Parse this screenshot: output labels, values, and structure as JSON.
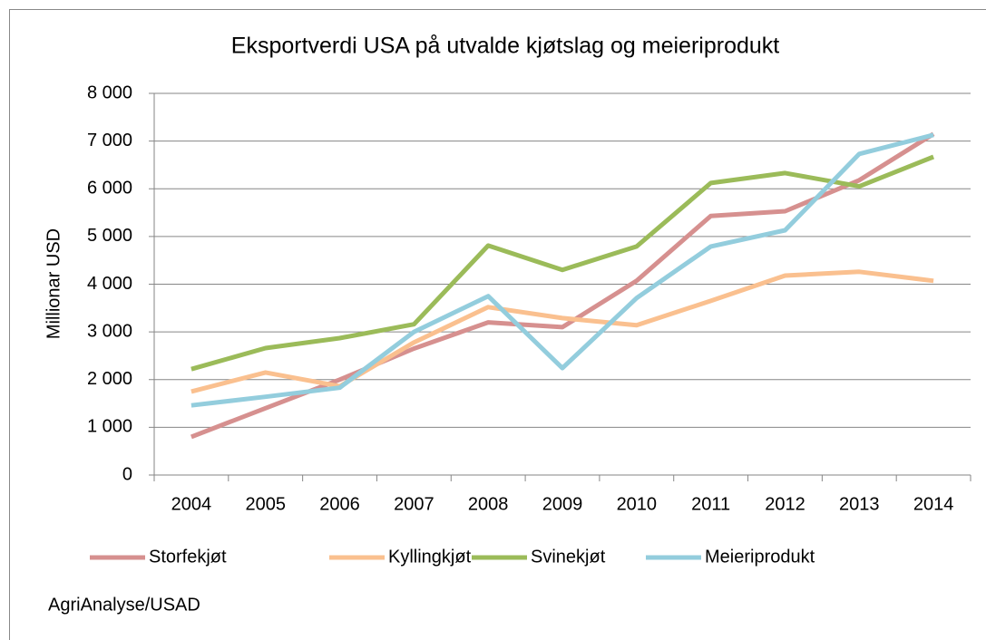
{
  "chart_data": {
    "type": "line",
    "title": "Eksportverdi USA på utvalde kjøtslag og meieriprodukt",
    "y_label": "Millionar USD",
    "source": "AgriAnalyse/USAD",
    "categories": [
      "2004",
      "2005",
      "2006",
      "2007",
      "2008",
      "2009",
      "2010",
      "2011",
      "2012",
      "2013",
      "2014"
    ],
    "series": [
      {
        "name": "Storfekjøt",
        "color": "#d6908f",
        "values": [
          800,
          1400,
          2000,
          2650,
          3200,
          3100,
          4070,
          5430,
          5530,
          6180,
          7150
        ]
      },
      {
        "name": "Kyllingkjøt",
        "color": "#fac08f",
        "values": [
          1750,
          2150,
          1860,
          2780,
          3520,
          3290,
          3140,
          3650,
          4180,
          4260,
          4070
        ]
      },
      {
        "name": "Svinekjøt",
        "color": "#9bbb59",
        "values": [
          2220,
          2660,
          2870,
          3160,
          4810,
          4300,
          4790,
          6120,
          6330,
          6050,
          6670
        ]
      },
      {
        "name": "Meieriprodukt",
        "color": "#93cddd",
        "values": [
          1460,
          1640,
          1830,
          3000,
          3750,
          2240,
          3710,
          4790,
          5130,
          6730,
          7130
        ]
      }
    ],
    "ylim": [
      0,
      8000
    ],
    "yticks": [
      0,
      {
        "value": 1000,
        "label": "1 000"
      },
      {
        "value": 2000,
        "label": "2 000"
      },
      {
        "value": 3000,
        "label": "3 000"
      },
      {
        "value": 4000,
        "label": "4 000"
      },
      {
        "value": 5000,
        "label": "5 000"
      },
      {
        "value": 6000,
        "label": "6 000"
      },
      {
        "value": 7000,
        "label": "7 000"
      },
      {
        "value": 8000,
        "label": "8 000"
      }
    ],
    "grid": true,
    "legend": "bottom"
  }
}
